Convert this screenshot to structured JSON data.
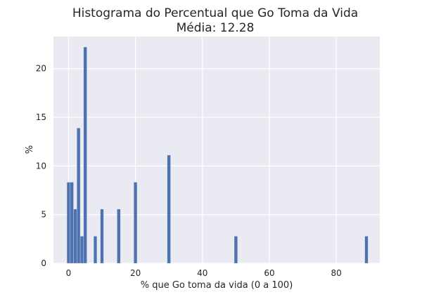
{
  "chart_data": {
    "type": "bar",
    "title": "Histograma do Percentual que Go Toma da Vida",
    "subtitle": "Média: 12.28",
    "xlabel": "% que Go toma da vida (0 a 100)",
    "ylabel": "%",
    "xlim": [
      -4.5,
      93
    ],
    "ylim": [
      0,
      23.3
    ],
    "xticks": [
      0,
      20,
      40,
      60,
      80
    ],
    "yticks": [
      0,
      5,
      10,
      15,
      20
    ],
    "grid": true,
    "bin_width": 0.98,
    "bins": [
      {
        "x": 0,
        "value": 8.33
      },
      {
        "x": 1,
        "value": 8.33
      },
      {
        "x": 2,
        "value": 5.56
      },
      {
        "x": 3,
        "value": 13.89
      },
      {
        "x": 4,
        "value": 2.78
      },
      {
        "x": 5,
        "value": 22.22
      },
      {
        "x": 8,
        "value": 2.78
      },
      {
        "x": 10,
        "value": 5.56
      },
      {
        "x": 15,
        "value": 5.56
      },
      {
        "x": 20,
        "value": 8.33
      },
      {
        "x": 30,
        "value": 11.11
      },
      {
        "x": 50,
        "value": 2.78
      },
      {
        "x": 89,
        "value": 2.78
      }
    ],
    "colors": {
      "bar": "#4c72b0",
      "background": "#eaeaf2",
      "grid": "#ffffff",
      "text": "#262626"
    }
  }
}
